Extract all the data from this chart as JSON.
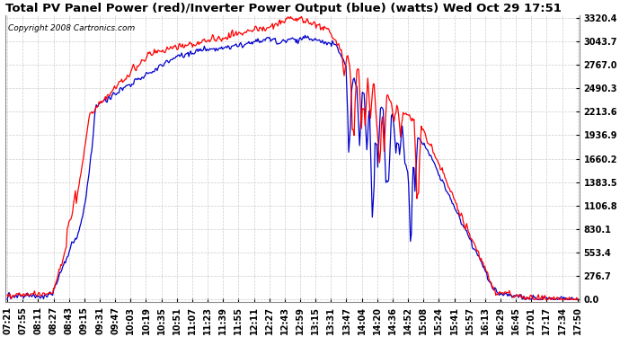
{
  "title": "Total PV Panel Power (red)/Inverter Power Output (blue) (watts) Wed Oct 29 17:51",
  "copyright": "Copyright 2008 Cartronics.com",
  "ylabel_right_values": [
    0.0,
    276.7,
    553.4,
    830.1,
    1106.8,
    1383.5,
    1660.2,
    1936.9,
    2213.6,
    2490.3,
    2767.0,
    3043.7,
    3320.4
  ],
  "ymax": 3320.4,
  "ymin": 0.0,
  "x_tick_labels": [
    "07:21",
    "07:55",
    "08:11",
    "08:27",
    "08:43",
    "09:15",
    "09:31",
    "09:47",
    "10:03",
    "10:19",
    "10:35",
    "10:51",
    "11:07",
    "11:23",
    "11:39",
    "11:55",
    "12:11",
    "12:27",
    "12:43",
    "12:59",
    "13:15",
    "13:31",
    "13:47",
    "14:04",
    "14:20",
    "14:36",
    "14:52",
    "15:08",
    "15:24",
    "15:41",
    "15:57",
    "16:13",
    "16:29",
    "16:45",
    "17:01",
    "17:17",
    "17:34",
    "17:50"
  ],
  "background_color": "#ffffff",
  "grid_color": "#cccccc",
  "line_color_red": "#ff0000",
  "line_color_blue": "#0000cc",
  "title_fontsize": 9.5,
  "tick_fontsize": 7,
  "copyright_fontsize": 6.5
}
